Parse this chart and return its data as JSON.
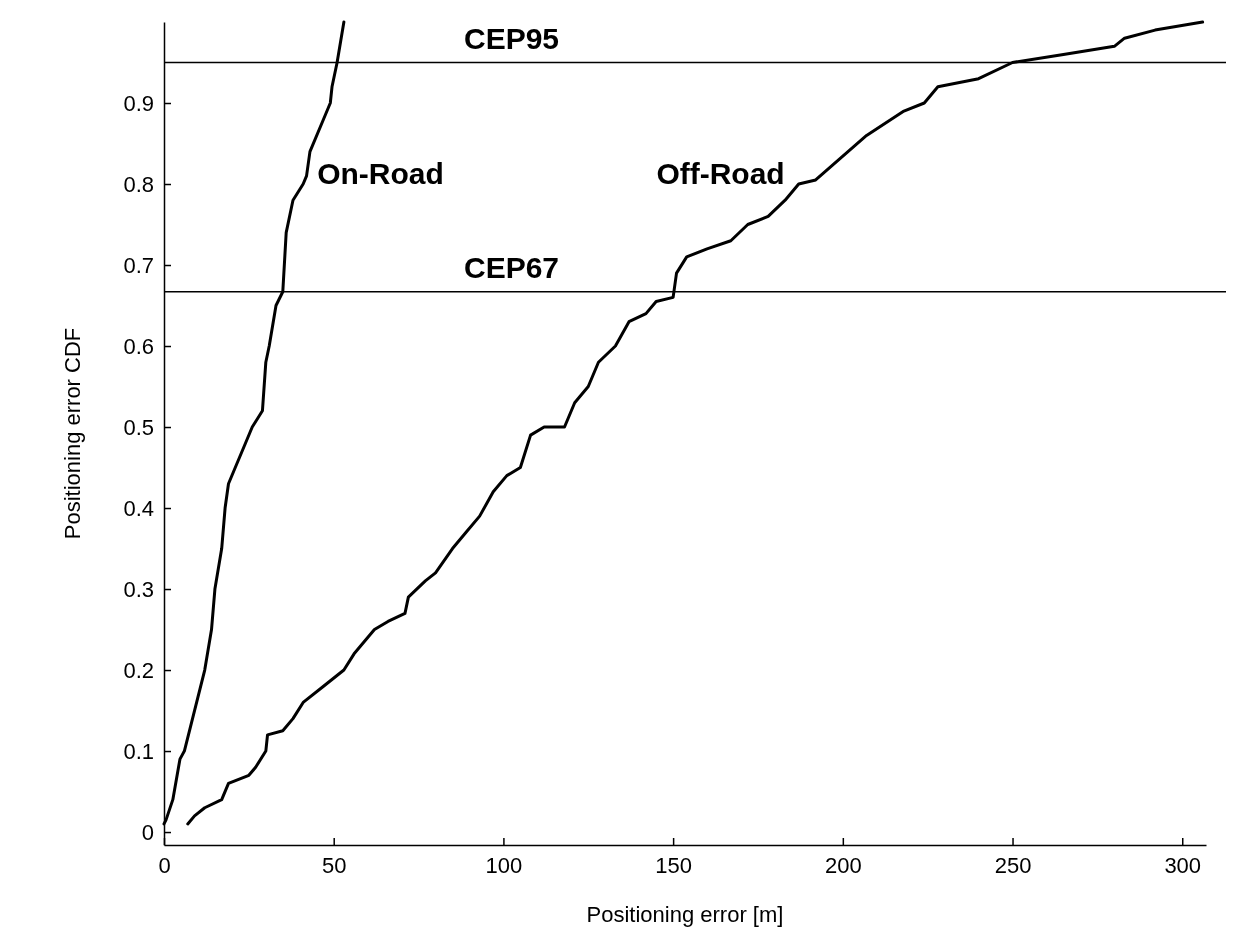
{
  "chart_data": {
    "type": "line",
    "xlabel": "Positioning error [m]",
    "ylabel": "Positioning error CDF",
    "xlim": [
      0,
      307
    ],
    "ylim": [
      -0.016,
      1
    ],
    "xticks": [
      0,
      50,
      100,
      150,
      200,
      250,
      300
    ],
    "yticks": [
      0,
      0.1,
      0.2,
      0.3,
      0.4,
      0.5,
      0.6,
      0.7,
      0.8,
      0.9
    ],
    "grid": false,
    "legend": false,
    "marker": "none",
    "line_style": "solid",
    "ref_lines": [
      {
        "axis": "y",
        "value": 0.95,
        "label": "CEP95",
        "color": "#000000"
      },
      {
        "axis": "y",
        "value": 0.667,
        "label": "CEP67",
        "color": "#000000"
      }
    ],
    "series": [
      {
        "name": "On-Road",
        "color": "#000000",
        "x": [
          0,
          0.6,
          2.6,
          4.7,
          6,
          9,
          12,
          14,
          15,
          17,
          18,
          19,
          21,
          24,
          26,
          29,
          30,
          31,
          33,
          35,
          36,
          38,
          41,
          42,
          43,
          47,
          49,
          49.5,
          51,
          53
        ],
        "values": [
          0.01,
          0.015,
          0.04,
          0.09,
          0.1,
          0.15,
          0.2,
          0.25,
          0.3,
          0.35,
          0.4,
          0.43,
          0.45,
          0.48,
          0.5,
          0.52,
          0.58,
          0.6,
          0.65,
          0.667,
          0.74,
          0.78,
          0.8,
          0.81,
          0.84,
          0.88,
          0.9,
          0.92,
          0.95,
          1.0
        ]
      },
      {
        "name": "Off-Road",
        "color": "#000000",
        "x": [
          7,
          9,
          12,
          17,
          19,
          25,
          27,
          30,
          30.5,
          35,
          38,
          41,
          47,
          53,
          56,
          62,
          66,
          71,
          72,
          77,
          80,
          85,
          89,
          93,
          97,
          101,
          105,
          108,
          112,
          118,
          121,
          125,
          128,
          133,
          137,
          142,
          145,
          150,
          151,
          154,
          160,
          167,
          172,
          178,
          183,
          187,
          192,
          207,
          218,
          224,
          228,
          240,
          250,
          265,
          280,
          283,
          292,
          306
        ],
        "values": [
          0.01,
          0.02,
          0.03,
          0.04,
          0.06,
          0.07,
          0.08,
          0.1,
          0.12,
          0.125,
          0.14,
          0.16,
          0.18,
          0.2,
          0.22,
          0.25,
          0.26,
          0.27,
          0.29,
          0.31,
          0.32,
          0.35,
          0.37,
          0.39,
          0.42,
          0.44,
          0.45,
          0.49,
          0.5,
          0.5,
          0.53,
          0.55,
          0.58,
          0.6,
          0.63,
          0.64,
          0.655,
          0.66,
          0.69,
          0.71,
          0.72,
          0.73,
          0.75,
          0.76,
          0.78,
          0.8,
          0.805,
          0.86,
          0.89,
          0.9,
          0.92,
          0.93,
          0.95,
          0.96,
          0.97,
          0.98,
          0.99,
          1.0
        ]
      }
    ]
  }
}
